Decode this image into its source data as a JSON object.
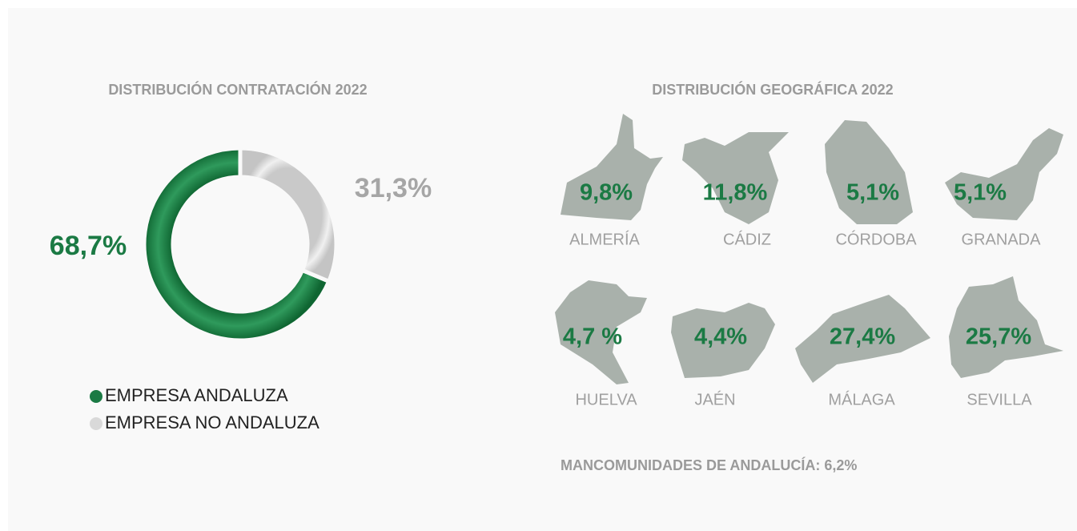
{
  "chart_data": {
    "type": "pie",
    "title": "DISTRIBUCIÓN CONTRATACIÓN 2022",
    "categories": [
      "EMPRESA ANDALUZA",
      "EMPRESA NO ANDALUZA"
    ],
    "values": [
      68.7,
      31.3
    ],
    "value_labels": [
      "68,7%",
      "31,3%"
    ],
    "colors": [
      "#1b7a44",
      "#d9d9d9"
    ],
    "donut": true
  },
  "geo": {
    "title": "DISTRIBUCIÓN GEOGRÁFICA 2022",
    "provinces": [
      {
        "name": "ALMERÍA",
        "value": 9.8,
        "label": "9,8%"
      },
      {
        "name": "CÁDIZ",
        "value": 11.8,
        "label": "11,8%"
      },
      {
        "name": "CÓRDOBA",
        "value": 5.1,
        "label": "5,1%"
      },
      {
        "name": "GRANADA",
        "value": 5.1,
        "label": "5,1%"
      },
      {
        "name": "HUELVA",
        "value": 4.7,
        "label": "4,7 %"
      },
      {
        "name": "JAÉN",
        "value": 4.4,
        "label": "4,4%"
      },
      {
        "name": "MÁLAGA",
        "value": 27.4,
        "label": "27,4%"
      },
      {
        "name": "SEVILLA",
        "value": 25.7,
        "label": "25,7%"
      }
    ],
    "note": "MANCOMUNIDADES DE ANDALUCÍA: 6,2%"
  }
}
